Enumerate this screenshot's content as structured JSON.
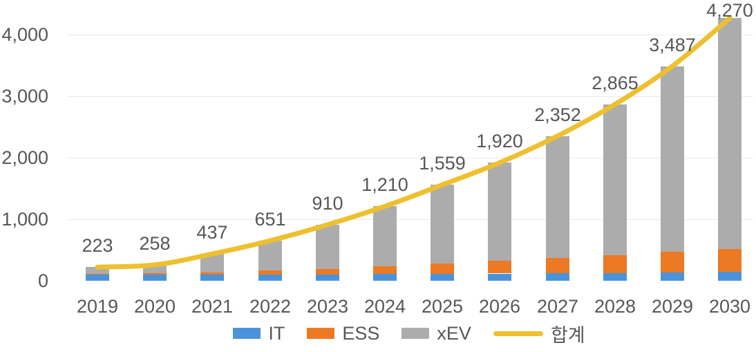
{
  "colors": {
    "it": "#4A93DB",
    "ess": "#EC7A24",
    "xev": "#ACACAC",
    "total_line": "#EEC02F",
    "text": "#575757",
    "gridline": "#ebebeb",
    "background": "#ffffff"
  },
  "axis": {
    "y_ticks": [
      {
        "label": "0",
        "value": 0
      },
      {
        "label": "1,000",
        "value": 1000
      },
      {
        "label": "2,000",
        "value": 2000
      },
      {
        "label": "3,000",
        "value": 3000
      },
      {
        "label": "4,000",
        "value": 4000
      }
    ]
  },
  "chart_data": {
    "type": "bar",
    "subtype": "stacked-bar-with-total-line",
    "categories": [
      "2019",
      "2020",
      "2021",
      "2022",
      "2023",
      "2024",
      "2025",
      "2026",
      "2027",
      "2028",
      "2029",
      "2030"
    ],
    "series": [
      {
        "name": "IT",
        "color": "#4A93DB",
        "values": [
          100,
          100,
          102,
          105,
          107,
          110,
          113,
          117,
          122,
          128,
          137,
          147
        ]
      },
      {
        "name": "ESS",
        "color": "#EC7A24",
        "values": [
          15,
          20,
          35,
          65,
          90,
          125,
          165,
          205,
          248,
          292,
          335,
          375
        ]
      },
      {
        "name": "xEV",
        "color": "#ACACAC",
        "values": [
          108,
          138,
          300,
          481,
          713,
          975,
          1281,
          1598,
          1982,
          2445,
          3015,
          3748
        ]
      }
    ],
    "line_series": {
      "name": "합계",
      "color": "#EEC02F",
      "values": [
        223,
        258,
        437,
        651,
        910,
        1210,
        1559,
        1920,
        2352,
        2865,
        3487,
        4270
      ]
    },
    "total_labels": [
      "223",
      "258",
      "437",
      "651",
      "910",
      "1,210",
      "1,559",
      "1,920",
      "2,352",
      "2,865",
      "3,487",
      "4,270"
    ],
    "ylim": [
      0,
      4270
    ],
    "y_axis_range": [
      0,
      4000
    ],
    "grid": true,
    "legend_position": "bottom",
    "title": "",
    "xlabel": "",
    "ylabel": ""
  },
  "legend": {
    "items": [
      {
        "label": "IT",
        "swatch": "rect",
        "color": "#4A93DB",
        "name": "legend-item-it"
      },
      {
        "label": "ESS",
        "swatch": "rect",
        "color": "#EC7A24",
        "name": "legend-item-ess"
      },
      {
        "label": "xEV",
        "swatch": "rect",
        "color": "#ACACAC",
        "name": "legend-item-xev"
      },
      {
        "label": "합계",
        "swatch": "line",
        "color": "#EEC02F",
        "name": "legend-item-total"
      }
    ]
  }
}
